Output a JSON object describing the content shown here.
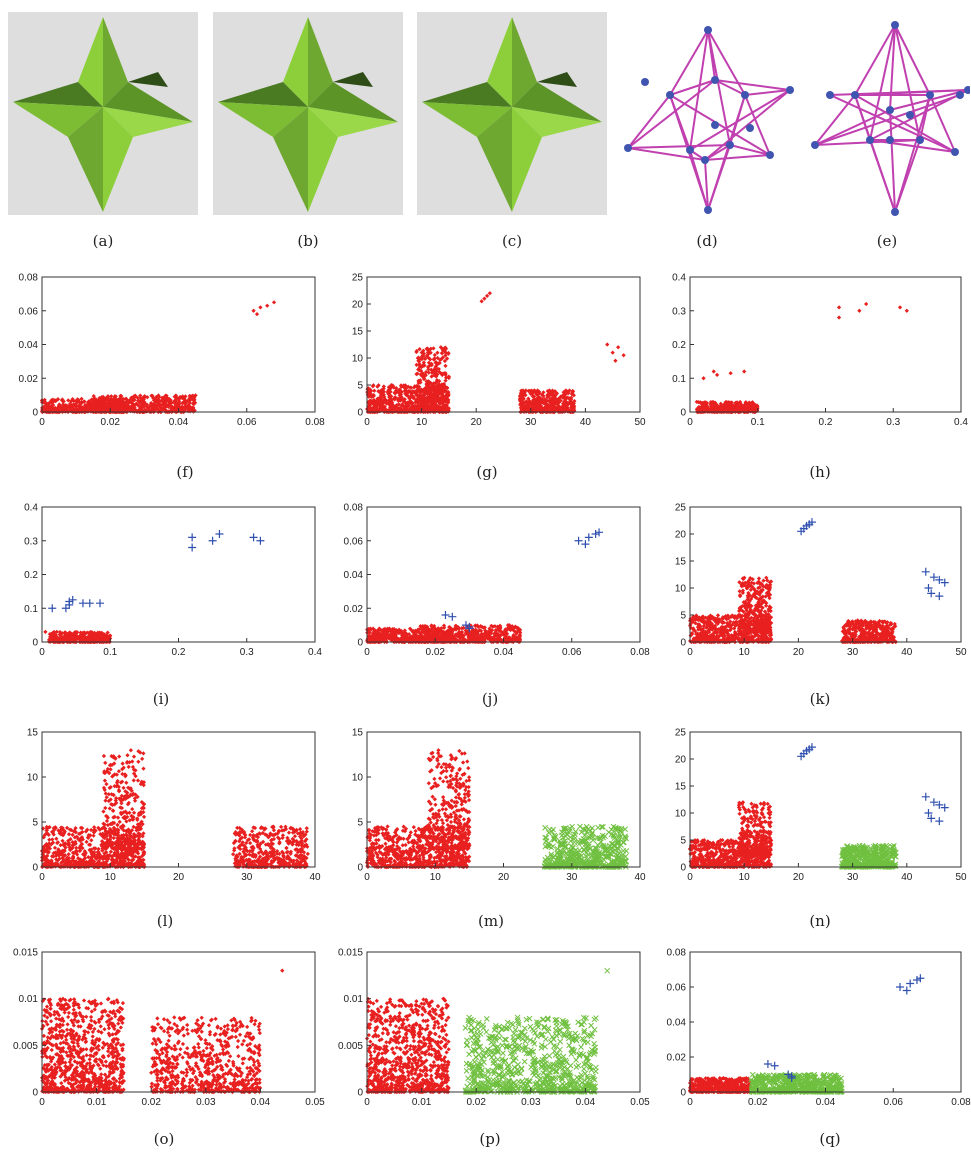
{
  "figure": {
    "captions": [
      "(a)",
      "(b)",
      "(c)",
      "(d)",
      "(e)",
      "(f)",
      "(g)",
      "(h)",
      "(i)",
      "(j)",
      "(k)",
      "(l)",
      "(m)",
      "(n)",
      "(o)",
      "(p)",
      "(q)"
    ]
  },
  "colors": {
    "star_light": "#8ccf3a",
    "star_dark": "#4a7a22",
    "graph_edge": "#c040b0",
    "graph_node": "#4055b0",
    "red": "#e82020",
    "blue": "#3050b0",
    "green": "#70c040"
  },
  "chart_data": [
    {
      "panel": "f",
      "type": "scatter",
      "xlim": [
        0,
        0.08
      ],
      "ylim": [
        0,
        0.08
      ],
      "xticks": [
        "0",
        "0.02",
        "0.04",
        "0.06",
        "0.08"
      ],
      "yticks": [
        "0",
        "0.02",
        "0.04",
        "0.06",
        "0.08"
      ],
      "series": [
        {
          "color": "red",
          "marker": "dot",
          "clusters": [
            {
              "x": [
                0,
                0.025
              ],
              "y": [
                0,
                0.008
              ],
              "n": 500
            },
            {
              "x": [
                0.015,
                0.045
              ],
              "y": [
                0,
                0.01
              ],
              "n": 500
            }
          ],
          "points": [
            [
              0.062,
              0.06
            ],
            [
              0.064,
              0.062
            ],
            [
              0.066,
              0.063
            ],
            [
              0.068,
              0.065
            ],
            [
              0.063,
              0.058
            ]
          ]
        }
      ]
    },
    {
      "panel": "g",
      "type": "scatter",
      "xlim": [
        0,
        50
      ],
      "ylim": [
        0,
        25
      ],
      "xticks": [
        "0",
        "10",
        "20",
        "30",
        "40",
        "50"
      ],
      "yticks": [
        "0",
        "5",
        "10",
        "15",
        "20",
        "25"
      ],
      "series": [
        {
          "color": "red",
          "marker": "dot",
          "clusters": [
            {
              "x": [
                0,
                15
              ],
              "y": [
                0,
                5
              ],
              "n": 600
            },
            {
              "x": [
                9,
                15
              ],
              "y": [
                2,
                12
              ],
              "n": 300
            },
            {
              "x": [
                28,
                38
              ],
              "y": [
                0,
                4
              ],
              "n": 400
            }
          ],
          "points": [
            [
              21,
              20.5
            ],
            [
              21.5,
              21
            ],
            [
              22,
              21.5
            ],
            [
              22.5,
              22
            ],
            [
              44,
              12.5
            ],
            [
              45,
              11
            ],
            [
              46,
              12
            ],
            [
              45.5,
              9.5
            ],
            [
              47,
              10.5
            ]
          ]
        }
      ]
    },
    {
      "panel": "h",
      "type": "scatter",
      "xlim": [
        0,
        0.4
      ],
      "ylim": [
        0,
        0.4
      ],
      "xticks": [
        "0",
        "0.1",
        "0.2",
        "0.3",
        "0.4"
      ],
      "yticks": [
        "0",
        "0.1",
        "0.2",
        "0.3",
        "0.4"
      ],
      "series": [
        {
          "color": "red",
          "marker": "dot",
          "clusters": [
            {
              "x": [
                0.01,
                0.1
              ],
              "y": [
                0,
                0.03
              ],
              "n": 400
            }
          ],
          "points": [
            [
              0.02,
              0.1
            ],
            [
              0.035,
              0.12
            ],
            [
              0.04,
              0.11
            ],
            [
              0.06,
              0.115
            ],
            [
              0.08,
              0.12
            ],
            [
              0.01,
              0.03
            ],
            [
              0.22,
              0.31
            ],
            [
              0.22,
              0.28
            ],
            [
              0.25,
              0.3
            ],
            [
              0.26,
              0.32
            ],
            [
              0.31,
              0.31
            ],
            [
              0.32,
              0.3
            ]
          ]
        }
      ]
    },
    {
      "panel": "i",
      "type": "scatter",
      "xlim": [
        0,
        0.4
      ],
      "ylim": [
        0,
        0.4
      ],
      "xticks": [
        "0",
        "0.1",
        "0.2",
        "0.3",
        "0.4"
      ],
      "yticks": [
        "0",
        "0.1",
        "0.2",
        "0.3",
        "0.4"
      ],
      "series": [
        {
          "color": "red",
          "marker": "dot",
          "clusters": [
            {
              "x": [
                0.01,
                0.1
              ],
              "y": [
                0,
                0.03
              ],
              "n": 400
            }
          ],
          "points": [
            [
              0.005,
              0.03
            ]
          ]
        },
        {
          "color": "blue",
          "marker": "plus",
          "clusters": [],
          "points": [
            [
              0.015,
              0.1
            ],
            [
              0.035,
              0.1
            ],
            [
              0.04,
              0.12
            ],
            [
              0.04,
              0.11
            ],
            [
              0.045,
              0.125
            ],
            [
              0.06,
              0.115
            ],
            [
              0.07,
              0.115
            ],
            [
              0.085,
              0.115
            ],
            [
              0.22,
              0.31
            ],
            [
              0.22,
              0.28
            ],
            [
              0.25,
              0.3
            ],
            [
              0.26,
              0.32
            ],
            [
              0.31,
              0.31
            ],
            [
              0.32,
              0.3
            ]
          ]
        }
      ]
    },
    {
      "panel": "j",
      "type": "scatter",
      "xlim": [
        0,
        0.08
      ],
      "ylim": [
        0,
        0.08
      ],
      "xticks": [
        "0",
        "0.02",
        "0.04",
        "0.06",
        "0.08"
      ],
      "yticks": [
        "0",
        "0.02",
        "0.04",
        "0.06",
        "0.08"
      ],
      "series": [
        {
          "color": "red",
          "marker": "dot",
          "clusters": [
            {
              "x": [
                0,
                0.025
              ],
              "y": [
                0,
                0.008
              ],
              "n": 500
            },
            {
              "x": [
                0.015,
                0.045
              ],
              "y": [
                0,
                0.01
              ],
              "n": 500
            }
          ],
          "points": []
        },
        {
          "color": "blue",
          "marker": "plus",
          "clusters": [],
          "points": [
            [
              0.023,
              0.016
            ],
            [
              0.025,
              0.015
            ],
            [
              0.029,
              0.01
            ],
            [
              0.03,
              0.008
            ],
            [
              0.03,
              0.009
            ],
            [
              0.062,
              0.06
            ],
            [
              0.064,
              0.058
            ],
            [
              0.065,
              0.062
            ],
            [
              0.067,
              0.064
            ],
            [
              0.068,
              0.065
            ]
          ]
        }
      ]
    },
    {
      "panel": "k",
      "type": "scatter",
      "xlim": [
        0,
        50
      ],
      "ylim": [
        0,
        25
      ],
      "xticks": [
        "0",
        "10",
        "20",
        "30",
        "40",
        "50"
      ],
      "yticks": [
        "0",
        "5",
        "10",
        "15",
        "20",
        "25"
      ],
      "series": [
        {
          "color": "red",
          "marker": "dot",
          "clusters": [
            {
              "x": [
                0,
                15
              ],
              "y": [
                0,
                5
              ],
              "n": 600
            },
            {
              "x": [
                9,
                15
              ],
              "y": [
                2,
                12
              ],
              "n": 300
            },
            {
              "x": [
                28,
                38
              ],
              "y": [
                0,
                4
              ],
              "n": 400
            }
          ],
          "points": []
        },
        {
          "color": "blue",
          "marker": "plus",
          "clusters": [],
          "points": [
            [
              20.5,
              20.5
            ],
            [
              21,
              21
            ],
            [
              21.5,
              21.5
            ],
            [
              22,
              21.8
            ],
            [
              22.5,
              22.2
            ],
            [
              43.5,
              13
            ],
            [
              44,
              10
            ],
            [
              44.5,
              9
            ],
            [
              45,
              12
            ],
            [
              46,
              8.5
            ],
            [
              46,
              11.5
            ],
            [
              47,
              11
            ]
          ]
        }
      ]
    },
    {
      "panel": "l",
      "type": "scatter",
      "xlim": [
        0,
        40
      ],
      "ylim": [
        0,
        15
      ],
      "xticks": [
        "0",
        "10",
        "20",
        "30",
        "40"
      ],
      "yticks": [
        "0",
        "5",
        "10",
        "15"
      ],
      "series": [
        {
          "color": "red",
          "marker": "dot",
          "clusters": [
            {
              "x": [
                0,
                15
              ],
              "y": [
                0,
                4.5
              ],
              "n": 700
            },
            {
              "x": [
                9,
                15
              ],
              "y": [
                2,
                13
              ],
              "n": 350
            },
            {
              "x": [
                28,
                39
              ],
              "y": [
                0,
                4.5
              ],
              "n": 450
            }
          ],
          "points": []
        }
      ]
    },
    {
      "panel": "m",
      "type": "scatter",
      "xlim": [
        0,
        40
      ],
      "ylim": [
        0,
        15
      ],
      "xticks": [
        "0",
        "10",
        "20",
        "30",
        "40"
      ],
      "yticks": [
        "0",
        "5",
        "10",
        "15"
      ],
      "series": [
        {
          "color": "red",
          "marker": "dot",
          "clusters": [
            {
              "x": [
                0,
                15
              ],
              "y": [
                0,
                4.5
              ],
              "n": 700
            },
            {
              "x": [
                9,
                15
              ],
              "y": [
                2,
                13
              ],
              "n": 350
            }
          ],
          "points": []
        },
        {
          "color": "green",
          "marker": "x",
          "clusters": [
            {
              "x": [
                26,
                38
              ],
              "y": [
                0,
                4.5
              ],
              "n": 450
            }
          ],
          "points": []
        }
      ]
    },
    {
      "panel": "n",
      "type": "scatter",
      "xlim": [
        0,
        50
      ],
      "ylim": [
        0,
        25
      ],
      "xticks": [
        "0",
        "10",
        "20",
        "30",
        "40",
        "50"
      ],
      "yticks": [
        "0",
        "5",
        "10",
        "15",
        "20",
        "25"
      ],
      "series": [
        {
          "color": "red",
          "marker": "dot",
          "clusters": [
            {
              "x": [
                0,
                15
              ],
              "y": [
                0,
                5
              ],
              "n": 600
            },
            {
              "x": [
                9,
                15
              ],
              "y": [
                2,
                12
              ],
              "n": 300
            }
          ],
          "points": []
        },
        {
          "color": "green",
          "marker": "x",
          "clusters": [
            {
              "x": [
                28,
                38
              ],
              "y": [
                0,
                4
              ],
              "n": 400
            }
          ],
          "points": []
        },
        {
          "color": "blue",
          "marker": "plus",
          "clusters": [],
          "points": [
            [
              20.5,
              20.5
            ],
            [
              21,
              21
            ],
            [
              21.5,
              21.5
            ],
            [
              22,
              21.8
            ],
            [
              22.5,
              22.2
            ],
            [
              43.5,
              13
            ],
            [
              44,
              10
            ],
            [
              44.5,
              9
            ],
            [
              45,
              12
            ],
            [
              46,
              8.5
            ],
            [
              46,
              11.5
            ],
            [
              47,
              11
            ]
          ]
        }
      ]
    },
    {
      "panel": "o",
      "type": "scatter",
      "xlim": [
        0,
        0.05
      ],
      "ylim": [
        0,
        0.015
      ],
      "xticks": [
        "0",
        "0.01",
        "0.02",
        "0.03",
        "0.04",
        "0.05"
      ],
      "yticks": [
        "0",
        "0.005",
        "0.01",
        "0.015"
      ],
      "series": [
        {
          "color": "red",
          "marker": "dot",
          "clusters": [
            {
              "x": [
                0,
                0.015
              ],
              "y": [
                0,
                0.01
              ],
              "n": 900
            },
            {
              "x": [
                0.02,
                0.04
              ],
              "y": [
                0,
                0.008
              ],
              "n": 700
            }
          ],
          "points": [
            [
              0.044,
              0.013
            ]
          ]
        }
      ]
    },
    {
      "panel": "p",
      "type": "scatter",
      "xlim": [
        0,
        0.05
      ],
      "ylim": [
        0,
        0.015
      ],
      "xticks": [
        "0",
        "0.01",
        "0.02",
        "0.03",
        "0.04",
        "0.05"
      ],
      "yticks": [
        "0",
        "0.005",
        "0.01",
        "0.015"
      ],
      "series": [
        {
          "color": "red",
          "marker": "dot",
          "clusters": [
            {
              "x": [
                0,
                0.015
              ],
              "y": [
                0,
                0.01
              ],
              "n": 900
            }
          ],
          "points": []
        },
        {
          "color": "green",
          "marker": "x",
          "clusters": [
            {
              "x": [
                0.018,
                0.042
              ],
              "y": [
                0,
                0.008
              ],
              "n": 700
            }
          ],
          "points": [
            [
              0.044,
              0.013
            ]
          ]
        }
      ]
    },
    {
      "panel": "q",
      "type": "scatter",
      "xlim": [
        0,
        0.08
      ],
      "ylim": [
        0,
        0.08
      ],
      "xticks": [
        "0",
        "0.02",
        "0.04",
        "0.06",
        "0.08"
      ],
      "yticks": [
        "0",
        "0.02",
        "0.04",
        "0.06",
        "0.08"
      ],
      "series": [
        {
          "color": "red",
          "marker": "dot",
          "clusters": [
            {
              "x": [
                0,
                0.018
              ],
              "y": [
                0,
                0.008
              ],
              "n": 500
            }
          ],
          "points": []
        },
        {
          "color": "green",
          "marker": "x",
          "clusters": [
            {
              "x": [
                0.018,
                0.045
              ],
              "y": [
                0,
                0.01
              ],
              "n": 500
            }
          ],
          "points": []
        },
        {
          "color": "blue",
          "marker": "plus",
          "clusters": [],
          "points": [
            [
              0.023,
              0.016
            ],
            [
              0.025,
              0.015
            ],
            [
              0.029,
              0.01
            ],
            [
              0.03,
              0.008
            ],
            [
              0.03,
              0.009
            ],
            [
              0.062,
              0.06
            ],
            [
              0.064,
              0.058
            ],
            [
              0.065,
              0.062
            ],
            [
              0.067,
              0.064
            ],
            [
              0.068,
              0.065
            ]
          ]
        }
      ]
    }
  ]
}
